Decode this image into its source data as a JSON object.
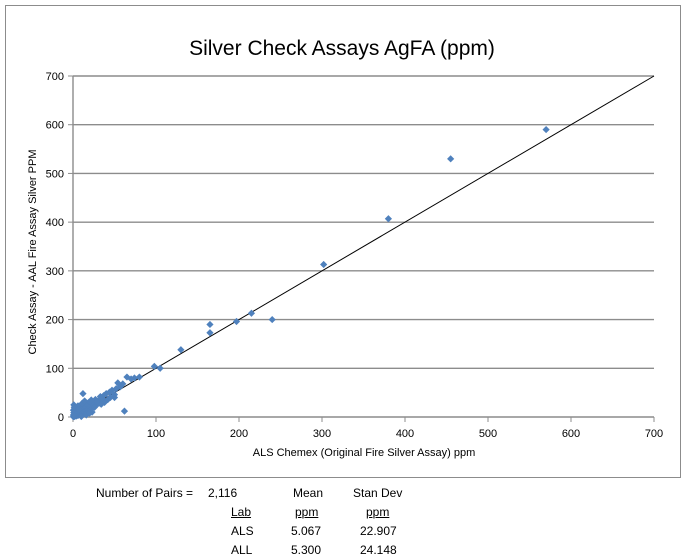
{
  "chart_data": {
    "type": "scatter",
    "title": "Silver Check Assays AgFA (ppm)",
    "xlabel": "ALS Chemex (Original Fire Silver Assay) ppm",
    "ylabel": "Check Assay - AAL Fire Assay Silver PPM",
    "xlim": [
      0,
      700
    ],
    "ylim": [
      0,
      700
    ],
    "xticks": [
      0,
      100,
      200,
      300,
      400,
      500,
      600,
      700
    ],
    "yticks": [
      0,
      100,
      200,
      300,
      400,
      500,
      600,
      700
    ],
    "grid": "horizontal",
    "legend": "none",
    "marker_color": "#4f81bd",
    "line_color": "#000000",
    "reference_line": [
      [
        0,
        0
      ],
      [
        700,
        700
      ]
    ],
    "points": [
      [
        570,
        590
      ],
      [
        455,
        530
      ],
      [
        380,
        407
      ],
      [
        302,
        313
      ],
      [
        240,
        200
      ],
      [
        215,
        213
      ],
      [
        197,
        196
      ],
      [
        165,
        190
      ],
      [
        165,
        173
      ],
      [
        130,
        138
      ],
      [
        105,
        100
      ],
      [
        98,
        104
      ],
      [
        80,
        82
      ],
      [
        74,
        80
      ],
      [
        70,
        78
      ],
      [
        65,
        82
      ],
      [
        62,
        12
      ],
      [
        60,
        68
      ],
      [
        57,
        62
      ],
      [
        54,
        70
      ],
      [
        52,
        58
      ],
      [
        50,
        46
      ],
      [
        50,
        40
      ],
      [
        47,
        55
      ],
      [
        44,
        51
      ],
      [
        40,
        48
      ],
      [
        38,
        30
      ],
      [
        35,
        38
      ],
      [
        33,
        42
      ],
      [
        31,
        28
      ],
      [
        30,
        33
      ],
      [
        28,
        25
      ],
      [
        27,
        36
      ],
      [
        25,
        22
      ],
      [
        24,
        29
      ],
      [
        22,
        27
      ],
      [
        21,
        15
      ],
      [
        20,
        18
      ],
      [
        19,
        30
      ],
      [
        18,
        12
      ],
      [
        17,
        22
      ],
      [
        16,
        10
      ],
      [
        15,
        25
      ],
      [
        14,
        16
      ],
      [
        13,
        8
      ],
      [
        12,
        48
      ],
      [
        12,
        20
      ],
      [
        11,
        13
      ],
      [
        10,
        5
      ],
      [
        9,
        17
      ],
      [
        9,
        10
      ],
      [
        8,
        6
      ],
      [
        8,
        22
      ],
      [
        7,
        12
      ],
      [
        6,
        3
      ],
      [
        6,
        9
      ],
      [
        5,
        15
      ],
      [
        5,
        5
      ],
      [
        4,
        2
      ],
      [
        4,
        8
      ],
      [
        3,
        4
      ],
      [
        3,
        12
      ],
      [
        2,
        1
      ],
      [
        2,
        6
      ],
      [
        2,
        18
      ],
      [
        1,
        2
      ],
      [
        1,
        9
      ],
      [
        1,
        25
      ],
      [
        0.5,
        0.5
      ],
      [
        0.5,
        4
      ],
      [
        0.5,
        14
      ],
      [
        1.5,
        20
      ],
      [
        3,
        19
      ],
      [
        6,
        23
      ],
      [
        11,
        28
      ],
      [
        14,
        33
      ],
      [
        22,
        35
      ],
      [
        26,
        20
      ],
      [
        29,
        31
      ],
      [
        34,
        26
      ],
      [
        37,
        44
      ],
      [
        42,
        36
      ],
      [
        45,
        40
      ],
      [
        23,
        10
      ],
      [
        16,
        4
      ],
      [
        20,
        8
      ],
      [
        10,
        1
      ],
      [
        7,
        16
      ]
    ]
  },
  "stats": {
    "pairs_label": "Number of Pairs =",
    "pairs_value": "2,116",
    "col_mean": "Mean",
    "col_stdev": "Stan Dev",
    "col_lab": "Lab",
    "unit_mean": "ppm",
    "unit_stdev": "ppm",
    "rows": [
      {
        "lab": "ALS",
        "mean": "5.067",
        "stdev": "22.907"
      },
      {
        "lab": "ALL",
        "mean": "5.300",
        "stdev": "24.148"
      }
    ]
  }
}
